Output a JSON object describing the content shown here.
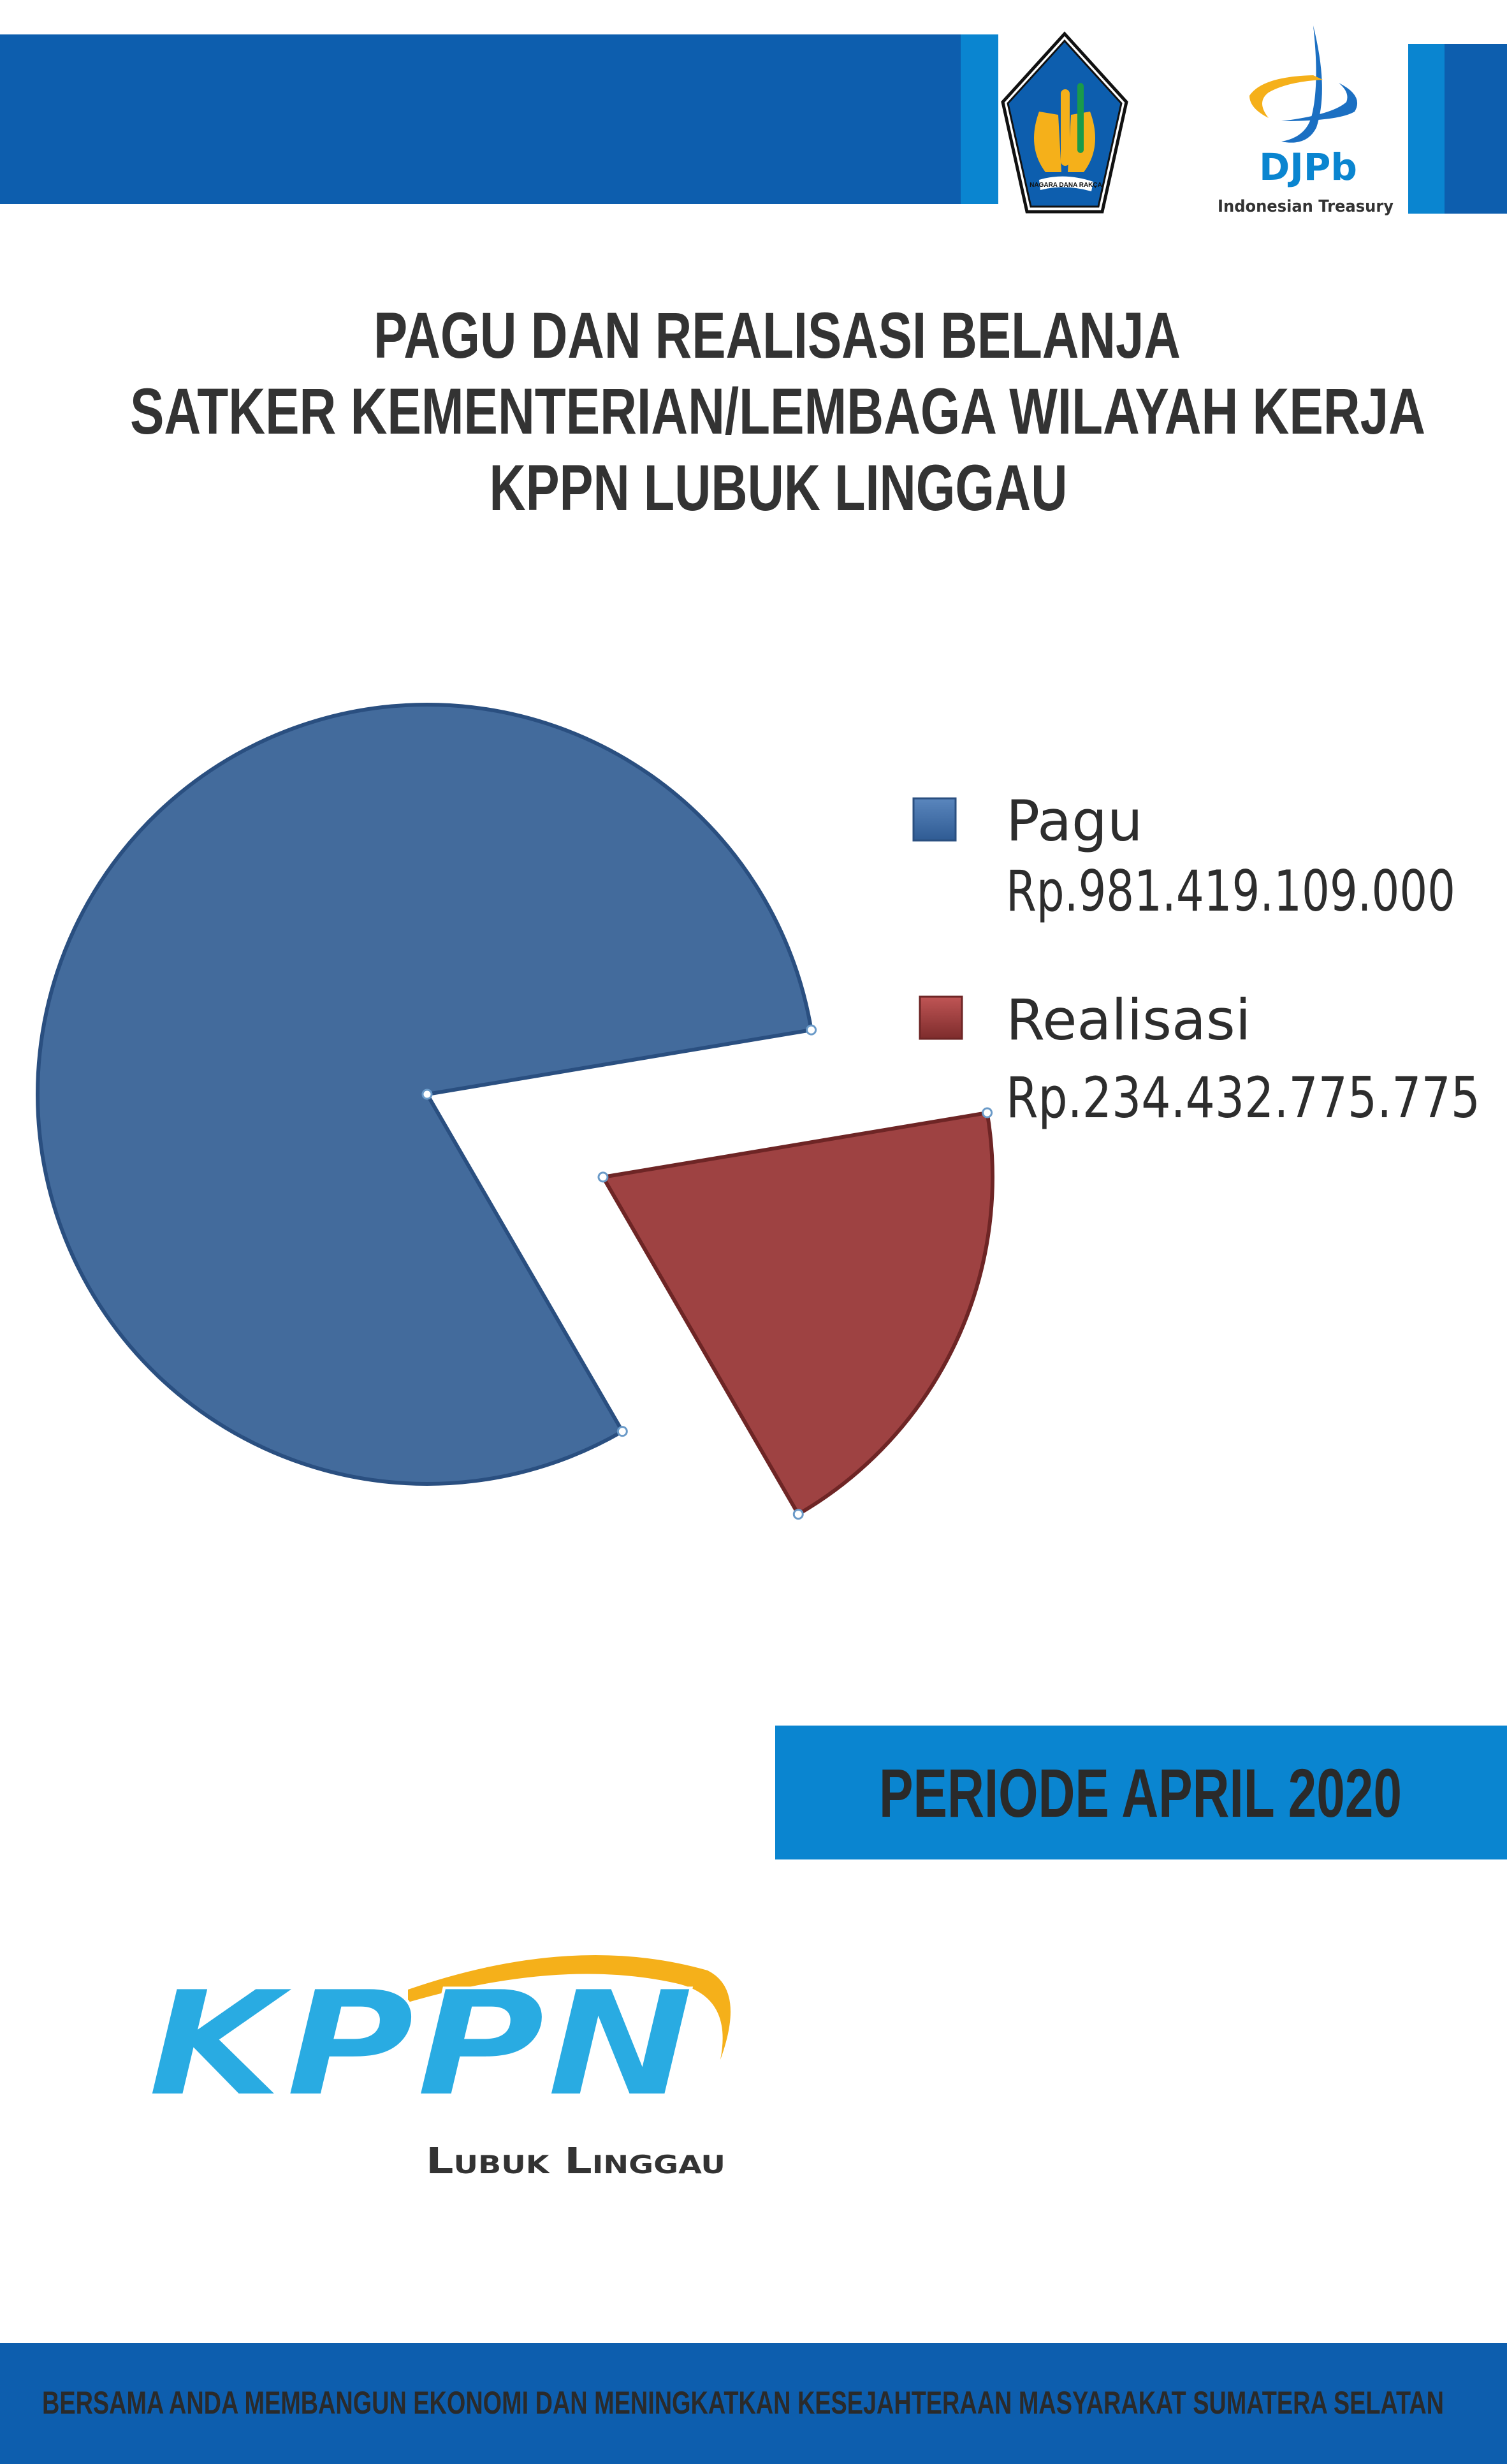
{
  "header": {
    "logo_kemenkeu_motto": "NAGARA DANA RAKÇA",
    "logo_djpb_name": "DJPb",
    "logo_djpb_tagline": "Indonesian Treasury"
  },
  "colors": {
    "header_blue": "#0d5eae",
    "accent_blue": "#0a85d0",
    "pagu": "#436b9c",
    "realisasi": "#9e4242",
    "kppn_blue": "#29abe2",
    "kppn_yellow": "#f5b01a"
  },
  "chart_data": {
    "type": "pie",
    "title": "PAGU DAN REALISASI BELANJA SATKER KEMENTERIAN/LEMBAGA WILAYAH KERJA KPPN LUBUK LINGGAU",
    "title_lines": [
      "PAGU DAN REALISASI BELANJA",
      "SATKER KEMENTERIAN/LEMBAGA WILAYAH KERJA",
      "KPPN LUBUK LINGGAU"
    ],
    "exploded": "Realisasi",
    "legend_position": "right",
    "slices": [
      {
        "name": "Pagu",
        "label": "Rp.981.419.109.000",
        "value": 981419109000,
        "color": "#436b9c"
      },
      {
        "name": "Realisasi",
        "label": "Rp.234.432.775.775",
        "value": 234432775775,
        "color": "#9e4242"
      }
    ]
  },
  "period": {
    "label": "PERIODE APRIL 2020"
  },
  "kppn_logo": {
    "name": "KPPN",
    "office": "Lubuk Linggau"
  },
  "footer": {
    "text": "BERSAMA ANDA MEMBANGUN EKONOMI DAN MENINGKATKAN KESEJAHTERAAN MASYARAKAT SUMATERA SELATAN"
  }
}
